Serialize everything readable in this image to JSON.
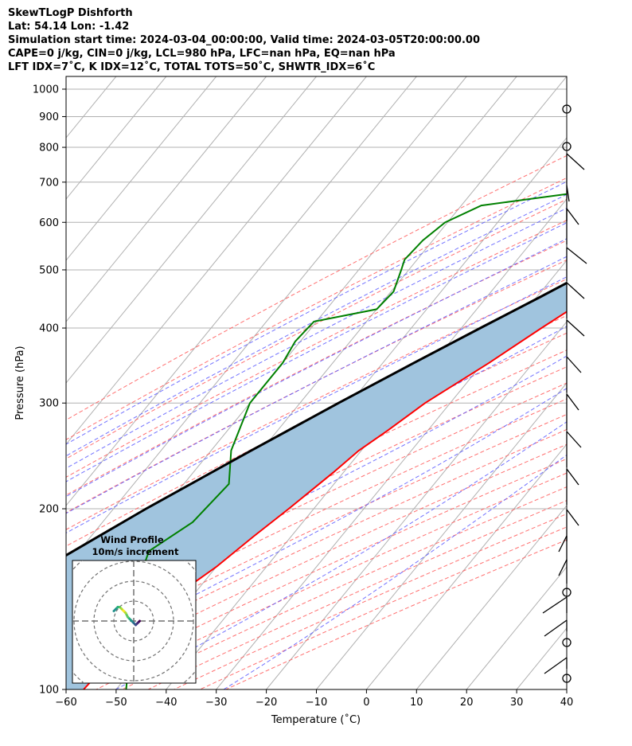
{
  "header": {
    "line1": "SkewTLogP Dishforth",
    "line2": "Lat: 54.14   Lon: -1.42",
    "line3": "Simulation start time: 2024-03-04_00:00:00, Valid time: 2024-03-05T20:00:00.00",
    "line4": "CAPE=0 j/kg, CIN=0 j/kg, LCL=980 hPa, LFC=nan hPa, EQ=nan hPa",
    "line5": "LFT IDX=7˚C, K IDX=12˚C, TOTAL TOTS=50˚C, SHWTR_IDX=6˚C"
  },
  "chart_data": {
    "type": "line",
    "subtype": "skew-T log-P diagram",
    "xlabel": "Temperature (˚C)",
    "ylabel": "Pressure (hPa)",
    "xlim": [
      -60,
      40
    ],
    "ylim": [
      1050,
      100
    ],
    "x_ticks": [
      -60,
      -50,
      -40,
      -30,
      -20,
      -10,
      0,
      10,
      20,
      30,
      40
    ],
    "x_tick_labels": [
      "−60",
      "−50",
      "−40",
      "−30",
      "−20",
      "−10",
      "0",
      "10",
      "20",
      "30",
      "40"
    ],
    "y_ticks": [
      1000,
      900,
      800,
      700,
      600,
      500,
      400,
      300,
      200,
      100
    ],
    "y_tick_labels": [
      "1000",
      "900",
      "800",
      "700",
      "600",
      "500",
      "400",
      "300",
      "200",
      "100"
    ],
    "grid": true,
    "colors": {
      "temperature": "#ff0000",
      "dewpoint": "#008000",
      "parcel": "#000000",
      "cape_fill": "#a0c4de",
      "dry_adiabat": "#ff6060",
      "moist_adiabat": "#5a5aff",
      "mixing_ratio": "#9a3fbf",
      "isotherm": "#b0b0b0"
    },
    "series": [
      {
        "name": "Temperature",
        "pressure": [
          1012,
          1000,
          970,
          950,
          900,
          850,
          800,
          750,
          700,
          650,
          600,
          550,
          500,
          450,
          400,
          350,
          300,
          270,
          250,
          230,
          200,
          180,
          160,
          150,
          130,
          120,
          110,
          100
        ],
        "values": [
          7.3,
          6.9,
          6.3,
          5.3,
          4.3,
          4.0,
          4.0,
          0.8,
          -1.8,
          -5.0,
          -8.0,
          -11.0,
          -15.0,
          -19.5,
          -24.0,
          -28.8,
          -35.0,
          -38.0,
          -40.5,
          -42.0,
          -45.0,
          -47.5,
          -50.0,
          -52.0,
          -54.5,
          -55.5,
          -56.0,
          -56.5
        ]
      },
      {
        "name": "Dewpoint",
        "pressure": [
          1012,
          1000,
          950,
          900,
          850,
          800,
          770,
          730,
          700,
          680,
          640,
          600,
          560,
          520,
          500,
          460,
          430,
          410,
          380,
          350,
          300,
          250,
          220,
          190,
          170,
          150,
          130,
          100
        ],
        "values": [
          2.0,
          1.8,
          1.3,
          0.2,
          -1.8,
          -4.0,
          -8.5,
          -15.0,
          -20.0,
          -35.0,
          -56.0,
          -60.5,
          -62.0,
          -62.5,
          -61.5,
          -59.5,
          -60.0,
          -70.5,
          -71.0,
          -70.0,
          -70.0,
          -66.0,
          -61.0,
          -62.0,
          -66.0,
          -63.0,
          -58.0,
          -48.0
        ]
      },
      {
        "name": "Parcel profile",
        "pressure": [
          1012,
          1000,
          980,
          950,
          900,
          850,
          800,
          750,
          700,
          650,
          600,
          550,
          500,
          450,
          400,
          350,
          300,
          250,
          200,
          150,
          100
        ],
        "values": [
          7.3,
          6.3,
          5.8,
          5.4,
          4.0,
          1.7,
          -0.5,
          -3.1,
          -6.0,
          -9.7,
          -13.7,
          -18.3,
          -23.5,
          -29.4,
          -36.2,
          -43.8,
          -52.3,
          -62.0,
          -73.5,
          -87.0,
          -104.0
        ]
      }
    ],
    "annotations": [
      "shaded area between parcel profile and temperature"
    ],
    "wind_barbs": {
      "pressure": [
        1000,
        950,
        900,
        850,
        800,
        750,
        700,
        650,
        600,
        550,
        500,
        450,
        400,
        350,
        300,
        250,
        200,
        175,
        150,
        125,
        100
      ],
      "note": "calm circles at 1000, 900, 800 (approx), 125 and 100 hPa"
    },
    "inset": {
      "type": "hodograph",
      "title": "Wind Profile",
      "subtitle": "10m/s increment",
      "rings": [
        10,
        20,
        30,
        40
      ],
      "u": [
        3,
        2,
        1,
        0,
        -1,
        -2,
        -3,
        -4,
        -5,
        -6,
        -7,
        -8,
        -9,
        -10
      ],
      "v": [
        0,
        -1,
        -2,
        -1,
        0,
        1,
        2,
        4,
        5,
        6,
        7,
        7,
        6,
        5
      ]
    }
  }
}
